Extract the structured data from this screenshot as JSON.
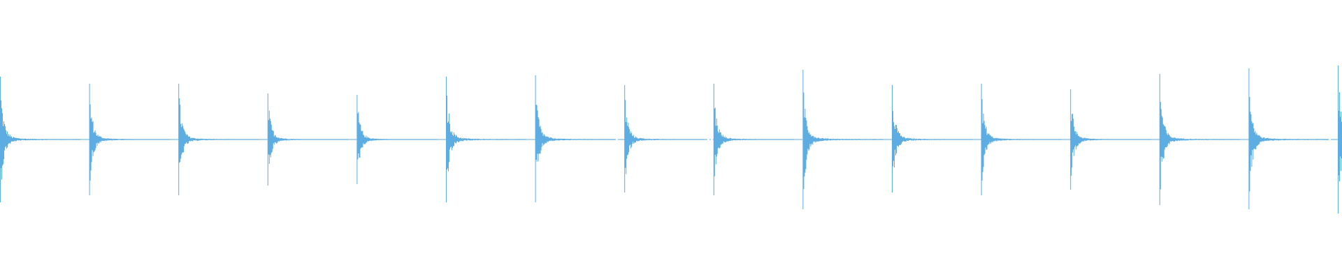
{
  "chart_data": {
    "type": "waveform",
    "title": "",
    "xlabel": "",
    "ylabel": "",
    "ylim": [
      -1,
      1
    ],
    "grid": false,
    "legend": "none",
    "color": "#5dade2",
    "background": "#ffffff",
    "transients": [
      {
        "beat": 0,
        "peak_pos": 0.45,
        "peak_neg": -0.45
      },
      {
        "beat": 1,
        "peak_pos": 0.4,
        "peak_neg": -0.4
      },
      {
        "beat": 2,
        "peak_pos": 0.4,
        "peak_neg": -0.4
      },
      {
        "beat": 3,
        "peak_pos": 0.33,
        "peak_neg": -0.33
      },
      {
        "beat": 4,
        "peak_pos": 0.32,
        "peak_neg": -0.32
      },
      {
        "beat": 5,
        "peak_pos": 0.45,
        "peak_neg": -0.45
      },
      {
        "beat": 6,
        "peak_pos": 0.46,
        "peak_neg": -0.45
      },
      {
        "beat": 7,
        "peak_pos": 0.39,
        "peak_neg": -0.38
      },
      {
        "beat": 8,
        "peak_pos": 0.4,
        "peak_neg": -0.4
      },
      {
        "beat": 9,
        "peak_pos": 0.5,
        "peak_neg": -0.5
      },
      {
        "beat": 10,
        "peak_pos": 0.39,
        "peak_neg": -0.38
      },
      {
        "beat": 11,
        "peak_pos": 0.4,
        "peak_neg": -0.4
      },
      {
        "beat": 12,
        "peak_pos": 0.36,
        "peak_neg": -0.36
      },
      {
        "beat": 13,
        "peak_pos": 0.47,
        "peak_neg": -0.47
      },
      {
        "beat": 14,
        "peak_pos": 0.51,
        "peak_neg": -0.5
      },
      {
        "beat": 15,
        "peak_pos": 0.53,
        "peak_neg": -0.53
      }
    ]
  }
}
